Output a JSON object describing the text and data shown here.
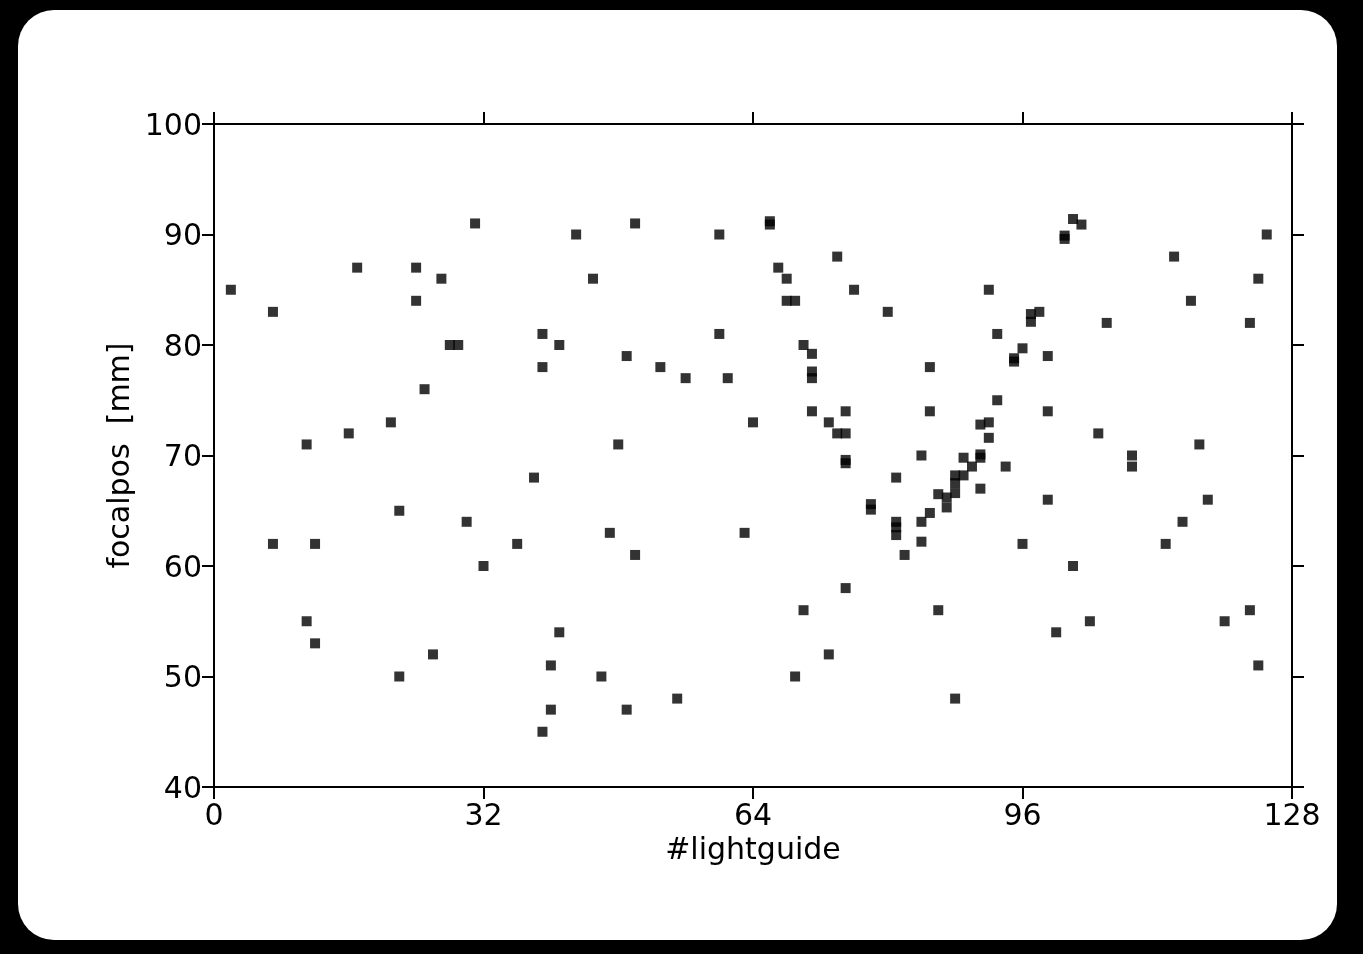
{
  "chart_data": {
    "type": "scatter",
    "xlabel": "#lightguide",
    "ylabel": "focalpos  [mm]",
    "xlim": [
      0,
      128
    ],
    "xticks": [
      0,
      32,
      64,
      96,
      128
    ],
    "ylim": [
      40,
      100
    ],
    "yticks": [
      40,
      50,
      60,
      70,
      80,
      90,
      100
    ],
    "grid": false,
    "marker": "square",
    "series": [
      {
        "color": "#000000",
        "x": [
          2,
          7,
          7,
          11,
          11,
          12,
          12,
          16,
          17,
          21,
          22,
          22,
          24,
          24,
          25,
          26,
          27,
          28,
          29,
          30,
          31,
          32,
          36,
          38,
          39,
          39,
          39,
          40,
          40,
          41,
          41,
          43,
          45,
          46,
          47,
          48,
          49,
          49,
          50,
          50,
          53,
          55,
          56,
          60,
          60,
          61,
          63,
          64,
          66,
          66,
          67,
          68,
          68,
          69,
          69,
          70,
          70,
          71,
          71,
          71,
          71,
          73,
          73,
          74,
          74,
          75,
          75,
          75,
          75,
          75,
          76,
          78,
          78,
          80,
          81,
          81,
          81,
          81,
          82,
          84,
          84,
          84,
          85,
          85,
          85,
          86,
          86,
          87,
          87,
          88,
          88,
          88,
          88,
          89,
          89,
          90,
          91,
          91,
          91,
          91,
          92,
          92,
          92,
          93,
          93,
          94,
          95,
          95,
          96,
          96,
          97,
          97,
          98,
          99,
          99,
          99,
          100,
          101,
          101,
          102,
          102,
          103,
          104,
          105,
          106,
          109,
          109,
          113,
          114,
          115,
          116,
          117,
          118,
          120,
          123,
          123,
          124,
          124,
          125
        ],
        "values": [
          85,
          83,
          62,
          71,
          55,
          62,
          53,
          72,
          87,
          73,
          65,
          50,
          87,
          84,
          76,
          52,
          86,
          80,
          80,
          64,
          91,
          60,
          62,
          68,
          81,
          78,
          45,
          51,
          47,
          80,
          54,
          90,
          86,
          50,
          63,
          71,
          79,
          47,
          91,
          61,
          78,
          48,
          77,
          90,
          81,
          77,
          63,
          73,
          91.2,
          90.9,
          87,
          86,
          84,
          84,
          50,
          80,
          56,
          79.2,
          77.6,
          77,
          74,
          73,
          52,
          88,
          72,
          74,
          72,
          69.6,
          69.3,
          58,
          85,
          65.6,
          65.1,
          83,
          68,
          64,
          63.5,
          62.8,
          61,
          70,
          64,
          62.2,
          78,
          74,
          64.8,
          66.5,
          56,
          66.2,
          65.3,
          68.2,
          67.5,
          66.6,
          48,
          69.8,
          68.2,
          69,
          72.8,
          70.1,
          69.8,
          67,
          85,
          73,
          71.6,
          81,
          75,
          69,
          78.8,
          78.5,
          79.7,
          62,
          82.8,
          82.1,
          83,
          79,
          74,
          66,
          54,
          89.9,
          89.6,
          91.4,
          60,
          90.9,
          55,
          72,
          82,
          70,
          69,
          62,
          88,
          64,
          84,
          71,
          66,
          55,
          56,
          82,
          86,
          51,
          90
        ]
      }
    ]
  }
}
